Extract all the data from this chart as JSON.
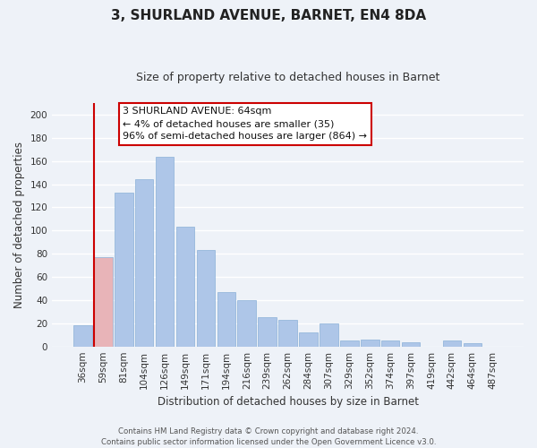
{
  "title": "3, SHURLAND AVENUE, BARNET, EN4 8DA",
  "subtitle": "Size of property relative to detached houses in Barnet",
  "xlabel": "Distribution of detached houses by size in Barnet",
  "ylabel": "Number of detached properties",
  "bar_labels": [
    "36sqm",
    "59sqm",
    "81sqm",
    "104sqm",
    "126sqm",
    "149sqm",
    "171sqm",
    "194sqm",
    "216sqm",
    "239sqm",
    "262sqm",
    "284sqm",
    "307sqm",
    "329sqm",
    "352sqm",
    "374sqm",
    "397sqm",
    "419sqm",
    "442sqm",
    "464sqm",
    "487sqm"
  ],
  "bar_values": [
    18,
    77,
    133,
    144,
    164,
    103,
    83,
    47,
    40,
    25,
    23,
    12,
    20,
    5,
    6,
    5,
    4,
    0,
    5,
    3,
    0
  ],
  "bar_color": "#aec6e8",
  "highlight_bar_index": 1,
  "highlight_color": "#e8b4b8",
  "ylim": [
    0,
    210
  ],
  "yticks": [
    0,
    20,
    40,
    60,
    80,
    100,
    120,
    140,
    160,
    180,
    200
  ],
  "annotation_title": "3 SHURLAND AVENUE: 64sqm",
  "annotation_line1": "← 4% of detached houses are smaller (35)",
  "annotation_line2": "96% of semi-detached houses are larger (864) →",
  "annotation_box_color": "#ffffff",
  "annotation_box_edge_color": "#cc0000",
  "footer_line1": "Contains HM Land Registry data © Crown copyright and database right 2024.",
  "footer_line2": "Contains public sector information licensed under the Open Government Licence v3.0.",
  "background_color": "#eef2f8",
  "grid_color": "#ffffff",
  "title_fontsize": 11,
  "subtitle_fontsize": 9,
  "tick_fontsize": 7.5,
  "axis_label_fontsize": 8.5
}
